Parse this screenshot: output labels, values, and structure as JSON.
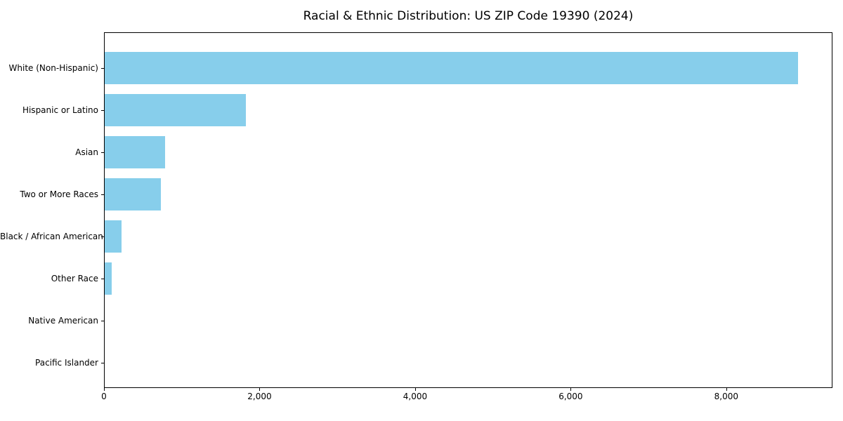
{
  "chart_data": {
    "type": "bar",
    "orientation": "horizontal",
    "title": "Racial & Ethnic Distribution: US ZIP Code 19390 (2024)",
    "categories": [
      "White (Non-Hispanic)",
      "Hispanic or Latino",
      "Asian",
      "Two or More Races",
      "Black / African American",
      "Other Race",
      "Native American",
      "Pacific Islander"
    ],
    "values": [
      8910,
      1815,
      775,
      720,
      215,
      90,
      0,
      0
    ],
    "xlabel": "",
    "ylabel": "",
    "xlim": [
      0,
      9365
    ],
    "x_ticks": [
      0,
      2000,
      4000,
      6000,
      8000
    ],
    "x_tick_labels": [
      "0",
      "2,000",
      "4,000",
      "6,000",
      "8,000"
    ],
    "bar_color": "#87CEEB",
    "background_color": "#ffffff",
    "axis_color": "#000000",
    "grid": false,
    "legend": null
  }
}
